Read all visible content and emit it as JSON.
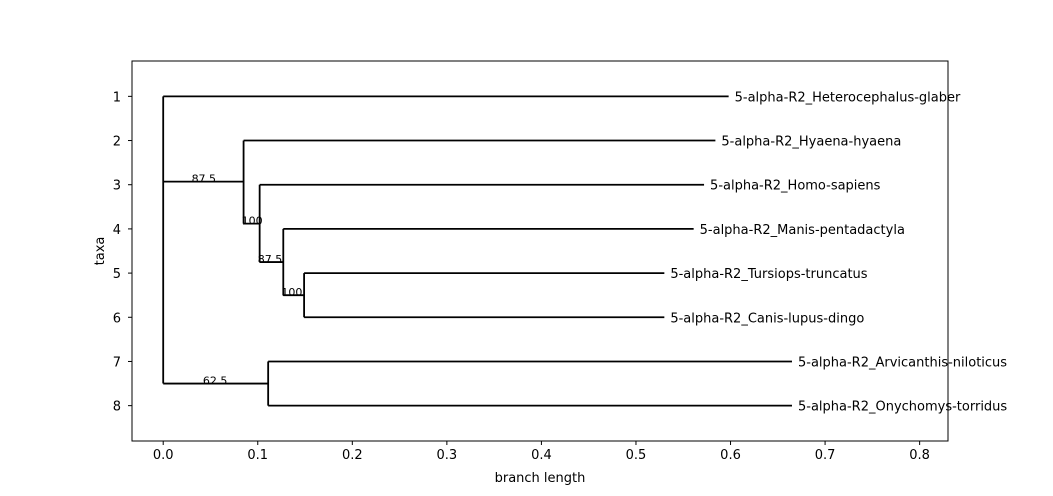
{
  "chart_data": {
    "type": "phylogenetic-tree",
    "xlabel": "branch length",
    "ylabel": "taxa",
    "xlim": [
      -0.033,
      0.83
    ],
    "ylim": [
      8.8,
      0.2
    ],
    "x_ticks": [
      0.0,
      0.1,
      0.2,
      0.3,
      0.4,
      0.5,
      0.6,
      0.7,
      0.8
    ],
    "x_tick_labels": [
      "0.0",
      "0.1",
      "0.2",
      "0.3",
      "0.4",
      "0.5",
      "0.6",
      "0.7",
      "0.8"
    ],
    "y_ticks": [
      1,
      2,
      3,
      4,
      5,
      6,
      7,
      8
    ],
    "y_tick_labels": [
      "1",
      "2",
      "3",
      "4",
      "5",
      "6",
      "7",
      "8"
    ],
    "line_color": "#000000",
    "taxa": [
      {
        "row": 1,
        "label": "5-alpha-R2_Heterocephalus-glaber",
        "x": 0.598
      },
      {
        "row": 2,
        "label": "5-alpha-R2_Hyaena-hyaena",
        "x": 0.584
      },
      {
        "row": 3,
        "label": "5-alpha-R2_Homo-sapiens",
        "x": 0.572
      },
      {
        "row": 4,
        "label": "5-alpha-R2_Manis-pentadactyla",
        "x": 0.561
      },
      {
        "row": 5,
        "label": "5-alpha-R2_Tursiops-truncatus",
        "x": 0.53
      },
      {
        "row": 6,
        "label": "5-alpha-R2_Canis-lupus-dingo",
        "x": 0.53
      },
      {
        "row": 7,
        "label": "5-alpha-R2_Arvicanthis-niloticus",
        "x": 0.665
      },
      {
        "row": 8,
        "label": "5-alpha-R2_Onychomys-torridus",
        "x": 0.665
      }
    ],
    "clades": [
      {
        "id": "root",
        "x": 0.0,
        "y_top": 1,
        "y_bottom": 7.5,
        "children": [
          "t1",
          "cA",
          "cF"
        ],
        "parent_x": null,
        "y": 2.93
      },
      {
        "id": "cA",
        "x": 0.085,
        "y_top": 2,
        "y_bottom": 3.88,
        "parent_x": 0.0,
        "y": 2.93,
        "support": "87.5"
      },
      {
        "id": "cB",
        "x": 0.102,
        "y_top": 3,
        "y_bottom": 4.75,
        "parent_x": 0.085,
        "y": 3.88,
        "support": "100"
      },
      {
        "id": "cC",
        "x": 0.127,
        "y_top": 4,
        "y_bottom": 5.5,
        "parent_x": 0.102,
        "y": 4.75,
        "support": "87.5"
      },
      {
        "id": "cD",
        "x": 0.149,
        "y_top": 5,
        "y_bottom": 6,
        "parent_x": 0.127,
        "y": 5.5,
        "support": "100"
      },
      {
        "id": "cF",
        "x": 0.111,
        "y_top": 7,
        "y_bottom": 8,
        "parent_x": 0.0,
        "y": 7.5,
        "support": "62.5"
      }
    ],
    "leaf_parents": [
      {
        "row": 1,
        "parent_x": 0.0
      },
      {
        "row": 2,
        "parent_x": 0.085
      },
      {
        "row": 3,
        "parent_x": 0.102
      },
      {
        "row": 4,
        "parent_x": 0.127
      },
      {
        "row": 5,
        "parent_x": 0.149
      },
      {
        "row": 6,
        "parent_x": 0.149
      },
      {
        "row": 7,
        "parent_x": 0.111
      },
      {
        "row": 8,
        "parent_x": 0.111
      }
    ],
    "support_labels": [
      {
        "text": "87.5",
        "x": 0.03,
        "y": 2.93
      },
      {
        "text": "100",
        "x": 0.083,
        "y": 3.88
      },
      {
        "text": "87.5",
        "x": 0.1,
        "y": 4.75
      },
      {
        "text": "100",
        "x": 0.125,
        "y": 5.5
      },
      {
        "text": "62.5",
        "x": 0.042,
        "y": 7.5
      }
    ]
  }
}
